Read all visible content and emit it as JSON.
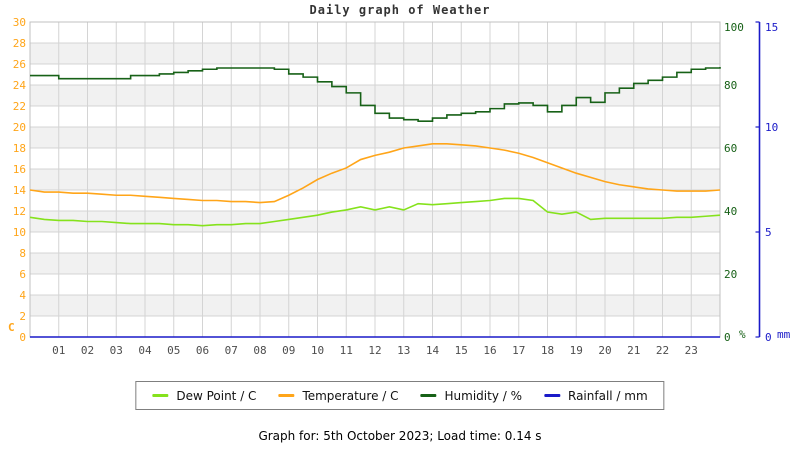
{
  "title": "Daily graph of Weather",
  "footer": "Graph for: 5th October 2023; Load time: 0.14 s",
  "colors": {
    "temperature": "#FFA519",
    "dew_point": "#85E21C",
    "humidity": "#176117",
    "rainfall": "#1A1AC8",
    "left_axis_label": "#FFA519",
    "humidity_axis_label": "#176117",
    "rain_axis_label": "#1A1AC8",
    "x_axis_label": "#4D4D4D",
    "grid": "#D4D4D4",
    "band_gray": "#F1F1F1",
    "plot_border": "#C0C0C0"
  },
  "legend": [
    {
      "key": "dew-point",
      "label": "Dew Point / C",
      "color": "#85E21C"
    },
    {
      "key": "temperature",
      "label": "Temperature / C",
      "color": "#FFA519"
    },
    {
      "key": "humidity",
      "label": "Humidity / %",
      "color": "#176117"
    },
    {
      "key": "rainfall",
      "label": "Rainfall / mm",
      "color": "#1A1AC8"
    }
  ],
  "chart_data": {
    "type": "line",
    "title": "Daily graph of Weather",
    "grid": true,
    "legend_position": "bottom",
    "axes": {
      "left": {
        "label": "C",
        "min": 0,
        "max": 30,
        "ticks": [
          0,
          2,
          4,
          6,
          8,
          10,
          12,
          14,
          16,
          18,
          20,
          22,
          24,
          26,
          28,
          30
        ]
      },
      "humidity": {
        "label": "%",
        "min": 0,
        "max": 100,
        "ticks": [
          0,
          20,
          40,
          60,
          80,
          100
        ]
      },
      "rain": {
        "label": "mm",
        "min": 0,
        "max": 15,
        "ticks": [
          0,
          5,
          10,
          15
        ]
      },
      "x": {
        "min": 0,
        "max": 24,
        "tick_labels": [
          "01",
          "02",
          "03",
          "04",
          "05",
          "06",
          "07",
          "08",
          "09",
          "10",
          "11",
          "12",
          "13",
          "14",
          "15",
          "16",
          "17",
          "18",
          "19",
          "20",
          "21",
          "22",
          "23"
        ]
      }
    },
    "x_hours": [
      0,
      0.5,
      1,
      1.5,
      2,
      2.5,
      3,
      3.5,
      4,
      4.5,
      5,
      5.5,
      6,
      6.5,
      7,
      7.5,
      8,
      8.5,
      9,
      9.5,
      10,
      10.5,
      11,
      11.5,
      12,
      12.5,
      13,
      13.5,
      14,
      14.5,
      15,
      15.5,
      16,
      16.5,
      17,
      17.5,
      18,
      18.5,
      19,
      19.5,
      20,
      20.5,
      21,
      21.5,
      22,
      22.5,
      23,
      23.5,
      24
    ],
    "series": [
      {
        "name": "Dew Point / C",
        "axis": "left",
        "style": "line",
        "values": [
          11.4,
          11.2,
          11.1,
          11.1,
          11.0,
          11.0,
          10.9,
          10.8,
          10.8,
          10.8,
          10.7,
          10.7,
          10.6,
          10.7,
          10.7,
          10.8,
          10.8,
          11.0,
          11.2,
          11.4,
          11.6,
          11.9,
          12.1,
          12.4,
          12.1,
          12.4,
          12.1,
          12.7,
          12.6,
          12.7,
          12.8,
          12.9,
          13.0,
          13.2,
          13.2,
          13.0,
          11.9,
          11.7,
          11.9,
          11.2,
          11.3,
          11.3,
          11.3,
          11.3,
          11.3,
          11.4,
          11.4,
          11.5,
          11.6
        ]
      },
      {
        "name": "Temperature / C",
        "axis": "left",
        "style": "line",
        "values": [
          14.0,
          13.8,
          13.8,
          13.7,
          13.7,
          13.6,
          13.5,
          13.5,
          13.4,
          13.3,
          13.2,
          13.1,
          13.0,
          13.0,
          12.9,
          12.9,
          12.8,
          12.9,
          13.5,
          14.2,
          15.0,
          15.6,
          16.1,
          16.9,
          17.3,
          17.6,
          18.0,
          18.2,
          18.4,
          18.4,
          18.3,
          18.2,
          18.0,
          17.8,
          17.5,
          17.1,
          16.6,
          16.1,
          15.6,
          15.2,
          14.8,
          14.5,
          14.3,
          14.1,
          14.0,
          13.9,
          13.9,
          13.9,
          14.0
        ]
      },
      {
        "name": "Humidity / %",
        "axis": "humidity",
        "style": "step",
        "values": [
          83,
          83,
          82,
          82,
          82,
          82,
          82,
          83,
          83,
          83.5,
          84,
          84.5,
          85,
          85.4,
          85.4,
          85.4,
          85.4,
          85,
          83.5,
          82.5,
          81,
          79.5,
          77.5,
          73.5,
          71,
          69.5,
          69,
          68.5,
          69.5,
          70.5,
          71,
          71.5,
          72.5,
          74,
          74.3,
          73.5,
          71.5,
          73.5,
          76,
          74.5,
          77.5,
          79,
          80.5,
          81.5,
          82.5,
          84,
          85,
          85.4,
          85.7
        ]
      },
      {
        "name": "Rainfall / mm",
        "axis": "rain",
        "style": "line",
        "values": [
          0,
          0,
          0,
          0,
          0,
          0,
          0,
          0,
          0,
          0,
          0,
          0,
          0,
          0,
          0,
          0,
          0,
          0,
          0,
          0,
          0,
          0,
          0,
          0,
          0,
          0,
          0,
          0,
          0,
          0,
          0,
          0,
          0,
          0,
          0,
          0,
          0,
          0,
          0,
          0,
          0,
          0,
          0,
          0,
          0,
          0,
          0,
          0,
          0
        ]
      }
    ]
  }
}
